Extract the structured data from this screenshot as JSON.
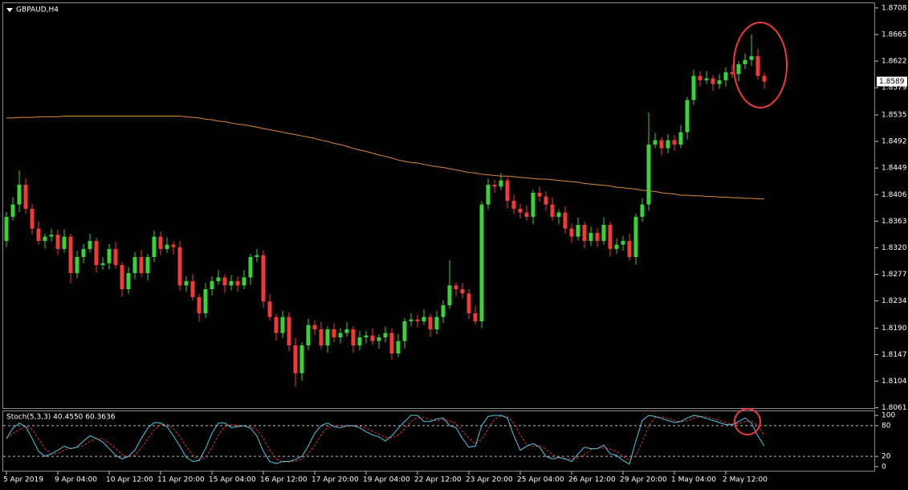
{
  "chart_data": [
    {
      "type": "candlestick",
      "title": "GBPAUD,H4",
      "categories": [
        "5 Apr 2019",
        null,
        null,
        null,
        null,
        null,
        null,
        null,
        "9 Apr 04:00",
        null,
        null,
        null,
        null,
        null,
        null,
        null,
        "10 Apr 12:00",
        null,
        null,
        null,
        null,
        null,
        null,
        null,
        "11 Apr 20:00",
        null,
        null,
        null,
        null,
        null,
        null,
        null,
        "15 Apr 04:00",
        null,
        null,
        null,
        null,
        null,
        null,
        null,
        "16 Apr 12:00",
        null,
        null,
        null,
        null,
        null,
        null,
        null,
        "17 Apr 20:00",
        null,
        null,
        null,
        null,
        null,
        null,
        null,
        "19 Apr 04:00",
        null,
        null,
        null,
        null,
        null,
        null,
        null,
        "22 Apr 12:00",
        null,
        null,
        null,
        null,
        null,
        null,
        null,
        "23 Apr 20:00",
        null,
        null,
        null,
        null,
        null,
        null,
        null,
        "25 Apr 04:00",
        null,
        null,
        null,
        null,
        null,
        null,
        null,
        "26 Apr 12:00",
        null,
        null,
        null,
        null,
        null,
        null,
        null,
        "29 Apr 20:00",
        null,
        null,
        null,
        null,
        null,
        null,
        null,
        "1 May 04:00",
        null,
        null,
        null,
        null,
        null,
        null,
        null,
        "2 May 12:00",
        null,
        null,
        null,
        null,
        null,
        null
      ],
      "open": [
        1.8331,
        1.837,
        1.839,
        1.8422,
        1.8383,
        1.8351,
        1.8331,
        1.8338,
        1.8341,
        1.8318,
        1.8338,
        1.8279,
        1.8305,
        1.8318,
        1.8331,
        1.8292,
        1.8295,
        1.8318,
        1.8292,
        1.8253,
        1.8279,
        1.8305,
        1.8279,
        1.8305,
        1.8338,
        1.8318,
        1.8325,
        1.8321,
        1.8259,
        1.8266,
        1.824,
        1.8214,
        1.8253,
        1.8266,
        1.8272,
        1.8259,
        1.8266,
        1.8259,
        1.8272,
        1.8305,
        1.8308,
        1.8233,
        1.8208,
        1.8182,
        1.8208,
        1.8162,
        1.8117,
        1.8162,
        1.8195,
        1.8188,
        1.8162,
        1.8188,
        1.8175,
        1.8182,
        1.8188,
        1.8162,
        1.8175,
        1.8178,
        1.8169,
        1.8175,
        1.8182,
        1.8149,
        1.8169,
        1.8201,
        1.8204,
        1.8201,
        1.8208,
        1.8188,
        1.8208,
        1.8227,
        1.8259,
        1.8253,
        1.8246,
        1.8214,
        1.8201,
        1.839,
        1.8422,
        1.8419,
        1.8429,
        1.8396,
        1.8383,
        1.8377,
        1.837,
        1.8409,
        1.8403,
        1.839,
        1.837,
        1.8377,
        1.8351,
        1.8338,
        1.8357,
        1.8331,
        1.8344,
        1.8331,
        1.8357,
        1.8318,
        1.8325,
        1.8331,
        1.8305,
        1.837,
        1.839,
        1.8487,
        1.8494,
        1.8481,
        1.8494,
        1.8487,
        1.8507,
        1.8559,
        1.8598,
        1.8591,
        1.8594,
        1.8585,
        1.8591,
        1.8604,
        1.8601,
        1.8617,
        1.8624,
        1.863,
        1.8598
      ],
      "high": [
        1.8378,
        1.8402,
        1.8445,
        1.8432,
        1.8391,
        1.8363,
        1.8343,
        1.8351,
        1.8349,
        1.835,
        1.8343,
        1.8315,
        1.8326,
        1.8343,
        1.8336,
        1.8305,
        1.8326,
        1.833,
        1.8297,
        1.8289,
        1.8313,
        1.8317,
        1.831,
        1.8348,
        1.8346,
        1.8337,
        1.833,
        1.8331,
        1.8274,
        1.8278,
        1.8245,
        1.8263,
        1.8274,
        1.8284,
        1.8277,
        1.8276,
        1.8274,
        1.8284,
        1.831,
        1.8318,
        1.8316,
        1.8245,
        1.8213,
        1.8218,
        1.8216,
        1.8174,
        1.8167,
        1.8205,
        1.8203,
        1.82,
        1.8193,
        1.8198,
        1.819,
        1.82,
        1.8193,
        1.8185,
        1.8186,
        1.819,
        1.818,
        1.8192,
        1.819,
        1.8181,
        1.8206,
        1.8214,
        1.8212,
        1.822,
        1.8213,
        1.8218,
        1.8235,
        1.83,
        1.8264,
        1.8263,
        1.8254,
        1.8226,
        1.8395,
        1.8432,
        1.843,
        1.8441,
        1.8434,
        1.8406,
        1.8391,
        1.8389,
        1.8414,
        1.8419,
        1.8411,
        1.8402,
        1.8382,
        1.8387,
        1.8359,
        1.8369,
        1.8362,
        1.8354,
        1.8352,
        1.8369,
        1.8362,
        1.8335,
        1.8339,
        1.8343,
        1.8375,
        1.84,
        1.8539,
        1.8506,
        1.8499,
        1.8504,
        1.8502,
        1.8519,
        1.8564,
        1.8608,
        1.8606,
        1.8606,
        1.8599,
        1.8601,
        1.8612,
        1.8616,
        1.8622,
        1.8634,
        1.8665,
        1.8642,
        1.8603
      ],
      "low": [
        1.8321,
        1.8364,
        1.8378,
        1.8375,
        1.8341,
        1.8325,
        1.8319,
        1.833,
        1.8308,
        1.8312,
        1.8262,
        1.8271,
        1.8295,
        1.8312,
        1.828,
        1.8284,
        1.8285,
        1.8286,
        1.8241,
        1.8245,
        1.8269,
        1.8273,
        1.8267,
        1.8297,
        1.8308,
        1.8312,
        1.8309,
        1.8251,
        1.8249,
        1.8234,
        1.82,
        1.8206,
        1.8243,
        1.826,
        1.8247,
        1.8251,
        1.8249,
        1.8253,
        1.826,
        1.8297,
        1.8223,
        1.8202,
        1.817,
        1.8174,
        1.8152,
        1.8095,
        1.8105,
        1.8154,
        1.8178,
        1.8156,
        1.815,
        1.8167,
        1.8165,
        1.8176,
        1.815,
        1.8154,
        1.8165,
        1.8163,
        1.8157,
        1.8167,
        1.8139,
        1.8143,
        1.8157,
        1.8193,
        1.8191,
        1.8195,
        1.8176,
        1.818,
        1.8198,
        1.8221,
        1.8241,
        1.8238,
        1.8204,
        1.8195,
        1.819,
        1.8382,
        1.8409,
        1.8413,
        1.8384,
        1.8375,
        1.8367,
        1.8364,
        1.8358,
        1.8395,
        1.838,
        1.8364,
        1.8358,
        1.8343,
        1.8328,
        1.8332,
        1.8319,
        1.8323,
        1.8321,
        1.8325,
        1.8306,
        1.831,
        1.8315,
        1.8299,
        1.8293,
        1.8362,
        1.838,
        1.8481,
        1.8469,
        1.8473,
        1.8477,
        1.8481,
        1.8495,
        1.8551,
        1.8581,
        1.8585,
        1.8573,
        1.8577,
        1.8581,
        1.8595,
        1.8589,
        1.8609,
        1.8614,
        1.8592,
        1.8577
      ],
      "close": [
        1.837,
        1.839,
        1.8422,
        1.8383,
        1.8351,
        1.8331,
        1.8338,
        1.8341,
        1.8318,
        1.8338,
        1.8279,
        1.8305,
        1.8318,
        1.8331,
        1.8292,
        1.8295,
        1.8318,
        1.8292,
        1.8253,
        1.8279,
        1.8305,
        1.8279,
        1.8305,
        1.8338,
        1.8318,
        1.8325,
        1.8321,
        1.8259,
        1.8266,
        1.824,
        1.8214,
        1.8253,
        1.8266,
        1.8272,
        1.8259,
        1.8266,
        1.8259,
        1.8272,
        1.8305,
        1.8308,
        1.8233,
        1.8208,
        1.8182,
        1.8208,
        1.8162,
        1.8117,
        1.8162,
        1.8195,
        1.8188,
        1.8162,
        1.8188,
        1.8175,
        1.8182,
        1.8188,
        1.8162,
        1.8175,
        1.8178,
        1.8169,
        1.8175,
        1.8182,
        1.8149,
        1.8169,
        1.8201,
        1.8204,
        1.8201,
        1.8208,
        1.8188,
        1.8208,
        1.8227,
        1.8259,
        1.8253,
        1.8246,
        1.8214,
        1.8201,
        1.839,
        1.8422,
        1.8419,
        1.8429,
        1.8396,
        1.8383,
        1.8377,
        1.837,
        1.8409,
        1.8403,
        1.839,
        1.837,
        1.8377,
        1.8351,
        1.8338,
        1.8357,
        1.8331,
        1.8344,
        1.8331,
        1.8357,
        1.8318,
        1.8325,
        1.8331,
        1.8305,
        1.837,
        1.839,
        1.8487,
        1.8494,
        1.8481,
        1.8494,
        1.8487,
        1.8507,
        1.8559,
        1.8598,
        1.8591,
        1.8594,
        1.8585,
        1.8591,
        1.8604,
        1.8601,
        1.8617,
        1.8624,
        1.863,
        1.8598,
        1.8589
      ],
      "up_color": "#3ad13a",
      "down_color": "#f03a3a",
      "overlay": {
        "color": "#e0883a",
        "values": [
          1.853,
          1.853,
          1.8531,
          1.8531,
          1.8531,
          1.8532,
          1.8532,
          1.8532,
          1.8532,
          1.8533,
          1.8533,
          1.8533,
          1.8533,
          1.8533,
          1.8533,
          1.8533,
          1.8533,
          1.8533,
          1.8533,
          1.8533,
          1.8533,
          1.8533,
          1.8533,
          1.8533,
          1.8533,
          1.8533,
          1.8533,
          1.8533,
          1.8532,
          1.8531,
          1.853,
          1.8528,
          1.8527,
          1.8525,
          1.8524,
          1.8522,
          1.852,
          1.8519,
          1.8517,
          1.8515,
          1.8513,
          1.8511,
          1.8509,
          1.8507,
          1.8505,
          1.8503,
          1.8501,
          1.8499,
          1.8497,
          1.8494,
          1.8492,
          1.8489,
          1.8487,
          1.8484,
          1.8481,
          1.8478,
          1.8476,
          1.8473,
          1.847,
          1.8468,
          1.8465,
          1.8462,
          1.846,
          1.8458,
          1.8457,
          1.8455,
          1.8453,
          1.8451,
          1.845,
          1.8448,
          1.8446,
          1.8444,
          1.8442,
          1.8441,
          1.8439,
          1.8438,
          1.8437,
          1.8436,
          1.8436,
          1.8435,
          1.8434,
          1.8433,
          1.8432,
          1.8431,
          1.8431,
          1.843,
          1.8429,
          1.8428,
          1.8427,
          1.8426,
          1.8424,
          1.8423,
          1.8422,
          1.8421,
          1.842,
          1.8418,
          1.8417,
          1.8416,
          1.8415,
          1.8413,
          1.8412,
          1.8411,
          1.8409,
          1.8408,
          1.8407,
          1.8405,
          1.8405,
          1.8404,
          1.8404,
          1.8403,
          1.8403,
          1.8402,
          1.8402,
          1.8401,
          1.8401,
          1.84,
          1.84,
          1.8399,
          1.8399
        ]
      },
      "current_price": 1.8589,
      "ylim": [
        1.8058,
        1.8717
      ],
      "yticks": [
        1.8708,
        1.8665,
        1.8622,
        1.8579,
        1.8535,
        1.8492,
        1.8449,
        1.8406,
        1.8363,
        {
          "value": 1.832,
          "label": "1.8320"
        },
        1.8277,
        1.8234,
        {
          "value": 1.819,
          "label": "1.8190"
        },
        1.8147,
        1.8104,
        1.8061
      ]
    },
    {
      "type": "stochastic",
      "title": "Stoch(5,3,3) 40.4550 60.3636",
      "main": {
        "color": "#4fc8e8",
        "values": [
          55,
          75,
          85,
          78,
          55,
          30,
          20,
          25,
          32,
          40,
          35,
          38,
          50,
          60,
          55,
          48,
          35,
          22,
          15,
          20,
          32,
          55,
          75,
          86,
          85,
          78,
          60,
          40,
          18,
          10,
          12,
          35,
          65,
          85,
          85,
          76,
          78,
          80,
          75,
          60,
          30,
          10,
          6,
          10,
          10,
          14,
          20,
          40,
          65,
          80,
          85,
          78,
          76,
          80,
          80,
          76,
          68,
          62,
          58,
          50,
          60,
          75,
          88,
          100,
          100,
          88,
          88,
          93,
          95,
          80,
          76,
          55,
          38,
          40,
          80,
          98,
          100,
          100,
          95,
          60,
          32,
          40,
          45,
          38,
          20,
          15,
          18,
          15,
          10,
          25,
          38,
          35,
          35,
          42,
          25,
          22,
          12,
          5,
          50,
          90,
          100,
          98,
          94,
          90,
          86,
          88,
          95,
          100,
          98,
          94,
          90,
          86,
          82,
          82,
          88,
          95,
          85,
          60,
          40.455
        ]
      },
      "signal": {
        "color": "#e03030",
        "values": [
          55,
          65,
          72,
          79,
          73,
          54,
          35,
          25,
          26,
          32,
          36,
          38,
          41,
          49,
          55,
          54,
          46,
          35,
          24,
          19,
          22,
          36,
          54,
          72,
          82,
          83,
          74,
          59,
          39,
          23,
          13,
          19,
          37,
          62,
          78,
          82,
          80,
          78,
          78,
          72,
          55,
          33,
          15,
          9,
          9,
          11,
          15,
          25,
          42,
          62,
          77,
          81,
          80,
          78,
          79,
          79,
          75,
          69,
          63,
          57,
          56,
          62,
          74,
          88,
          96,
          96,
          92,
          90,
          92,
          89,
          84,
          70,
          56,
          44,
          53,
          73,
          93,
          99,
          98,
          85,
          62,
          44,
          39,
          41,
          34,
          24,
          18,
          16,
          14,
          17,
          24,
          33,
          36,
          37,
          34,
          30,
          20,
          13,
          22,
          48,
          80,
          96,
          97,
          94,
          90,
          88,
          90,
          94,
          98,
          97,
          94,
          90,
          86,
          83,
          84,
          88,
          89,
          80,
          60.3636
        ]
      },
      "levels": [
        80,
        20
      ],
      "ylim": [
        -8,
        108
      ],
      "yticks": [
        100,
        80,
        20,
        0
      ]
    }
  ]
}
